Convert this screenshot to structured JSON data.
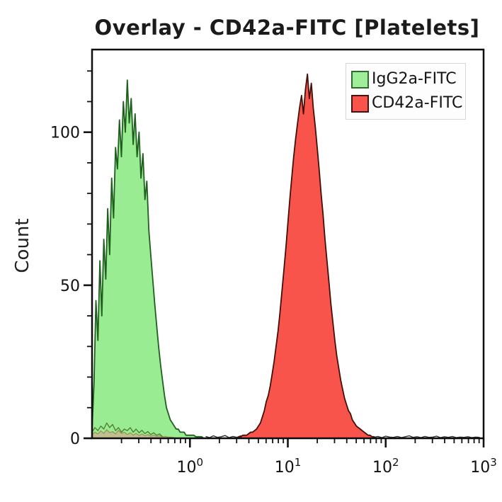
{
  "chart_data": {
    "type": "area",
    "subtype": "flow-cytometry-histogram-overlay",
    "title": "Overlay - CD42a-FITC [Platelets]",
    "xlabel": "",
    "ylabel": "Count",
    "grid": false,
    "x_axis": {
      "scale": "log10",
      "log_min": -1,
      "log_max": 3,
      "base": "10",
      "labeled_exponents": [
        0,
        1,
        2,
        3
      ],
      "minor_mantissas": [
        2,
        3,
        4,
        5,
        6,
        7,
        8,
        9
      ]
    },
    "y_axis": {
      "label": "Count",
      "major_ticks": [
        {
          "value": 0,
          "label": "0"
        },
        {
          "value": 50,
          "label": "50"
        },
        {
          "value": 100,
          "label": "100"
        }
      ],
      "minor_step": 10,
      "minor_max": 120
    },
    "ylim": [
      0,
      127
    ],
    "legend": {
      "position": "top-right",
      "entries": [
        {
          "label": "IgG2a-FITC",
          "fill": "#a0ee97",
          "stroke": "#2f6b2f"
        },
        {
          "label": "CD42a-FITC",
          "fill": "#f8544c",
          "stroke": "#471210"
        }
      ]
    },
    "series": [
      {
        "name": "IgG2a-FITC",
        "draw": "area",
        "fill": "#9aec92",
        "stroke": "#1e5e1e",
        "stroke_width": 1.8,
        "log_start": -1.0,
        "log_step": 0.02,
        "counts": [
          3,
          18,
          45,
          32,
          58,
          40,
          65,
          52,
          75,
          60,
          85,
          72,
          95,
          88,
          104,
          92,
          110,
          100,
          117,
          103,
          111,
          96,
          106,
          92,
          100,
          85,
          93,
          78,
          84,
          68,
          60,
          52,
          44,
          37,
          30,
          24,
          19,
          14,
          10,
          8,
          6,
          5,
          4,
          3,
          3,
          2,
          2,
          2,
          1,
          1,
          1,
          1,
          1,
          0.5,
          0.5,
          0.5,
          0.5,
          0
        ]
      },
      {
        "name": "autofluorescence-baseline",
        "draw": "area",
        "fill": "#c6bb90",
        "stroke": "#97894f",
        "stroke_width": 1.2,
        "opacity": 0.9,
        "log_start": -1.0,
        "log_step": 0.03,
        "counts": [
          1.2,
          2,
          1.4,
          2.4,
          1.6,
          2.8,
          1.8,
          2.2,
          1.4,
          2.6,
          1.6,
          2,
          1.2,
          1.8,
          1,
          1.6,
          0.9,
          1.4,
          0.8,
          1.2,
          0.7,
          1,
          0.6,
          0.8,
          0.5,
          0.6,
          0.4,
          0.4,
          0.2,
          0
        ]
      },
      {
        "name": "green-noise-outline",
        "draw": "line",
        "fill": "none",
        "stroke": "#4e7a33",
        "stroke_width": 1.3,
        "log_start": -1.0,
        "log_step": 0.03,
        "counts": [
          2,
          3.5,
          2.5,
          4,
          3,
          5,
          3.5,
          4.5,
          2.5,
          3.5,
          2,
          3,
          2.5,
          3.5,
          2,
          3,
          1.8,
          2.6,
          1.5,
          2.2,
          1.2,
          1.8,
          1,
          1.4,
          0.5
        ]
      },
      {
        "name": "baseline-noise",
        "draw": "line",
        "fill": "none",
        "stroke": "#2d2d2d",
        "stroke_width": 1.4,
        "log_start": 0.16,
        "log_step": 0.04,
        "counts": [
          0.6,
          0.2,
          0.8,
          0.3,
          0.5,
          0.9,
          0.2,
          0.6,
          0.3,
          0.8,
          0.4,
          0.6,
          0.2,
          0.9,
          0.5,
          0.3,
          0.7,
          0.2,
          0.5,
          0.8,
          0.3,
          0.6,
          0.2,
          0.7,
          0.4,
          0.8,
          0.3,
          0.5,
          0.2,
          0.7,
          0.3,
          0.6,
          0.9,
          0.2,
          0.5,
          0.3,
          0.7,
          0.2,
          0.6,
          0.4,
          0.8,
          0.2,
          0.5,
          0.3,
          0.6,
          0.2,
          0.7,
          0.4,
          0.3,
          0.6,
          0.2,
          0.5,
          0.8,
          0.3,
          0.5,
          0.2,
          0.6,
          0.3,
          0.4,
          0.7,
          0.2,
          0.5,
          0.3,
          0.6,
          0.2,
          0.4,
          0.3,
          0.5,
          0.2,
          0.4,
          0.3
        ]
      },
      {
        "name": "CD42a-FITC",
        "draw": "area",
        "fill": "#f8544c",
        "stroke": "#431009",
        "stroke_width": 1.8,
        "log_start": 0.5,
        "log_step": 0.02,
        "counts": [
          0.5,
          0.5,
          1,
          1,
          1,
          1.5,
          2,
          2,
          2.5,
          3,
          4,
          5,
          7,
          9,
          12,
          14,
          17,
          21,
          25,
          30,
          35,
          41,
          48,
          55,
          62,
          70,
          78,
          85,
          92,
          98,
          103,
          108,
          112,
          106,
          114,
          119,
          111,
          116,
          108,
          102,
          95,
          88,
          80,
          73,
          65,
          58,
          51,
          44,
          38,
          32,
          27,
          23,
          19,
          16,
          13,
          11,
          9,
          8,
          6,
          5,
          4,
          3.5,
          3,
          2.5,
          2,
          1.5,
          1,
          1,
          0.5,
          0.5,
          0
        ]
      }
    ],
    "style": {
      "plot_border_color": "#0d0d0d",
      "tick_color": "#141414",
      "tick_label_color": "#111111",
      "background": "#ffffff"
    }
  }
}
